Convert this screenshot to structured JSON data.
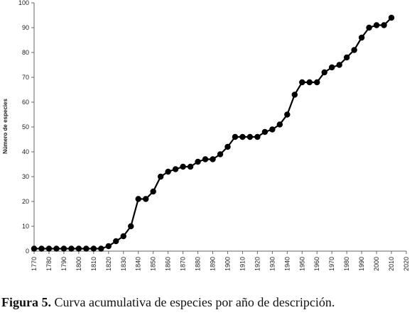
{
  "chart_data": {
    "type": "line",
    "title": "",
    "xlabel": "",
    "ylabel": "Número de especies",
    "xlim": [
      1770,
      2020
    ],
    "ylim": [
      0,
      100
    ],
    "x_ticks": [
      1770,
      1780,
      1790,
      1800,
      1810,
      1820,
      1830,
      1840,
      1850,
      1860,
      1870,
      1880,
      1890,
      1900,
      1910,
      1920,
      1930,
      1940,
      1950,
      1960,
      1970,
      1980,
      1990,
      2000,
      2010,
      2020
    ],
    "y_ticks": [
      0,
      10,
      20,
      30,
      40,
      50,
      60,
      70,
      80,
      90,
      100
    ],
    "grid": false,
    "legend": "none",
    "series": [
      {
        "color": "#000000",
        "marker": "circle",
        "x": [
          1770,
          1775,
          1780,
          1785,
          1790,
          1795,
          1800,
          1805,
          1810,
          1815,
          1820,
          1825,
          1830,
          1835,
          1840,
          1845,
          1850,
          1855,
          1860,
          1865,
          1870,
          1875,
          1880,
          1885,
          1890,
          1895,
          1900,
          1905,
          1910,
          1915,
          1920,
          1925,
          1930,
          1935,
          1940,
          1945,
          1950,
          1955,
          1960,
          1965,
          1970,
          1975,
          1980,
          1985,
          1990,
          1995,
          2000,
          2005,
          2010
        ],
        "y": [
          1,
          1,
          1,
          1,
          1,
          1,
          1,
          1,
          1,
          1,
          2,
          4,
          6,
          10,
          21,
          21,
          24,
          30,
          32,
          33,
          34,
          34,
          36,
          37,
          37,
          39,
          42,
          46,
          46,
          46,
          46,
          48,
          49,
          51,
          55,
          63,
          68,
          68,
          68,
          72,
          74,
          75,
          78,
          81,
          86,
          90,
          91,
          91,
          94
        ]
      }
    ]
  },
  "caption": {
    "figure_label": "Figura 5.",
    "text": " Curva acumulativa de especies por año de descripción."
  }
}
